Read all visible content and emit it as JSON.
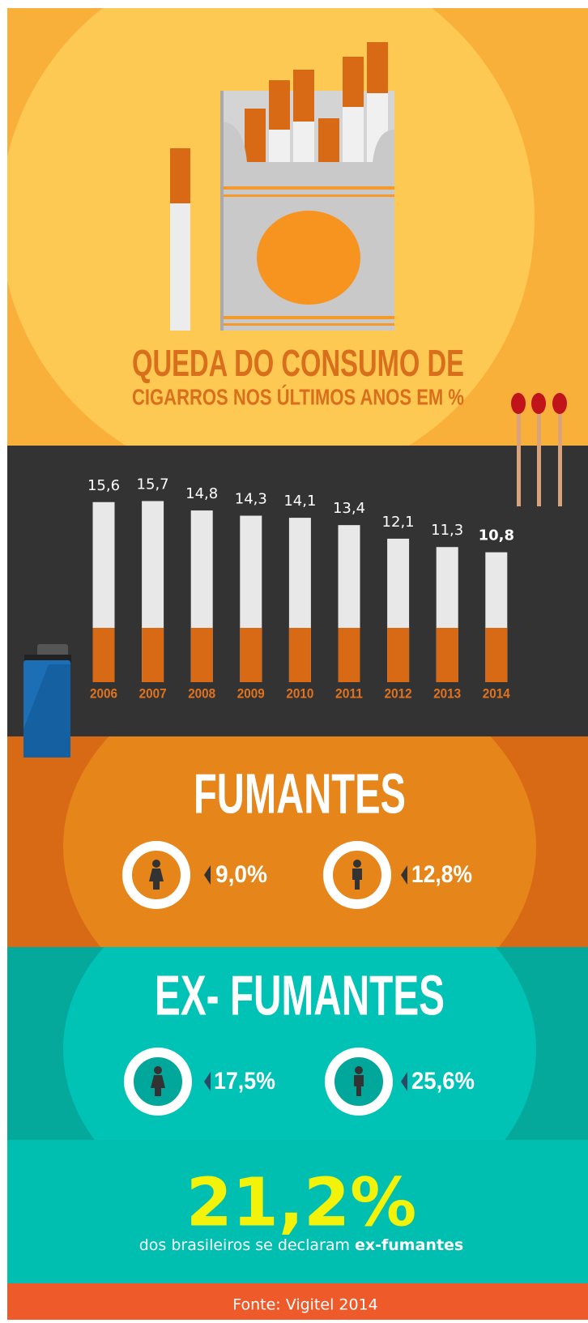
{
  "chart_data": {
    "type": "bar",
    "title": "QUEDA DO CONSUMO DE",
    "subtitle": "CIGARROS NOS ÚLTIMOS ANOS EM %",
    "categories": [
      "2006",
      "2007",
      "2008",
      "2009",
      "2010",
      "2011",
      "2012",
      "2013",
      "2014"
    ],
    "values": [
      15.6,
      15.7,
      14.8,
      14.3,
      14.1,
      13.4,
      12.1,
      11.3,
      10.8
    ],
    "value_labels": [
      "15,6",
      "15,7",
      "14,8",
      "14,3",
      "14,1",
      "13,4",
      "12,1",
      "11,3",
      "10,8"
    ]
  },
  "smokers": {
    "title": "FUMANTES",
    "women": "9,0%",
    "men": "12,8%"
  },
  "ex_smokers": {
    "title": "EX- FUMANTES",
    "women": "17,5%",
    "men": "25,6%"
  },
  "highlight": {
    "value": "21,2%",
    "text": "dos brasileiros se declaram",
    "emphasis": "ex-fumantes"
  },
  "source": "Fonte: Vigitel 2014"
}
